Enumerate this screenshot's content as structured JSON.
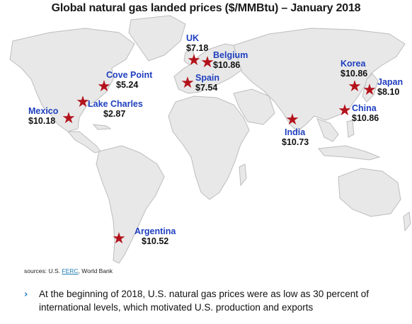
{
  "title": "Global natural gas landed prices ($/MMBtu) – January 2018",
  "colors": {
    "land": "#e8e8e8",
    "coast": "#bdbdbd",
    "star": "#b3121b",
    "label": "#1f3fbf",
    "bullet": "#1a78c2"
  },
  "markers": [
    {
      "id": "uk",
      "name": "UK",
      "price": "$7.18"
    },
    {
      "id": "belgium",
      "name": "Belgium",
      "price": "$10.86"
    },
    {
      "id": "spain",
      "name": "Spain",
      "price": "$7.54"
    },
    {
      "id": "cove-point",
      "name": "Cove Point",
      "price": "$5.24"
    },
    {
      "id": "lake-charles",
      "name": "Lake Charles",
      "price": "$2.87"
    },
    {
      "id": "mexico",
      "name": "Mexico",
      "price": "$10.18"
    },
    {
      "id": "korea",
      "name": "Korea",
      "price": "$10.86"
    },
    {
      "id": "japan",
      "name": "Japan",
      "price": "$8.10"
    },
    {
      "id": "china",
      "name": "China",
      "price": "$10.86"
    },
    {
      "id": "india",
      "name": "India",
      "price": "$10.73"
    },
    {
      "id": "argentina",
      "name": "Argentina",
      "price": "$10.52"
    }
  ],
  "sources": {
    "prefix": "sources: U.S. ",
    "link": "FERC",
    "suffix": ", World Bank"
  },
  "bullet_text": "At the beginning of 2018, U.S. natural gas prices were as low as 30 percent of international levels, which motivated U.S. production and exports"
}
